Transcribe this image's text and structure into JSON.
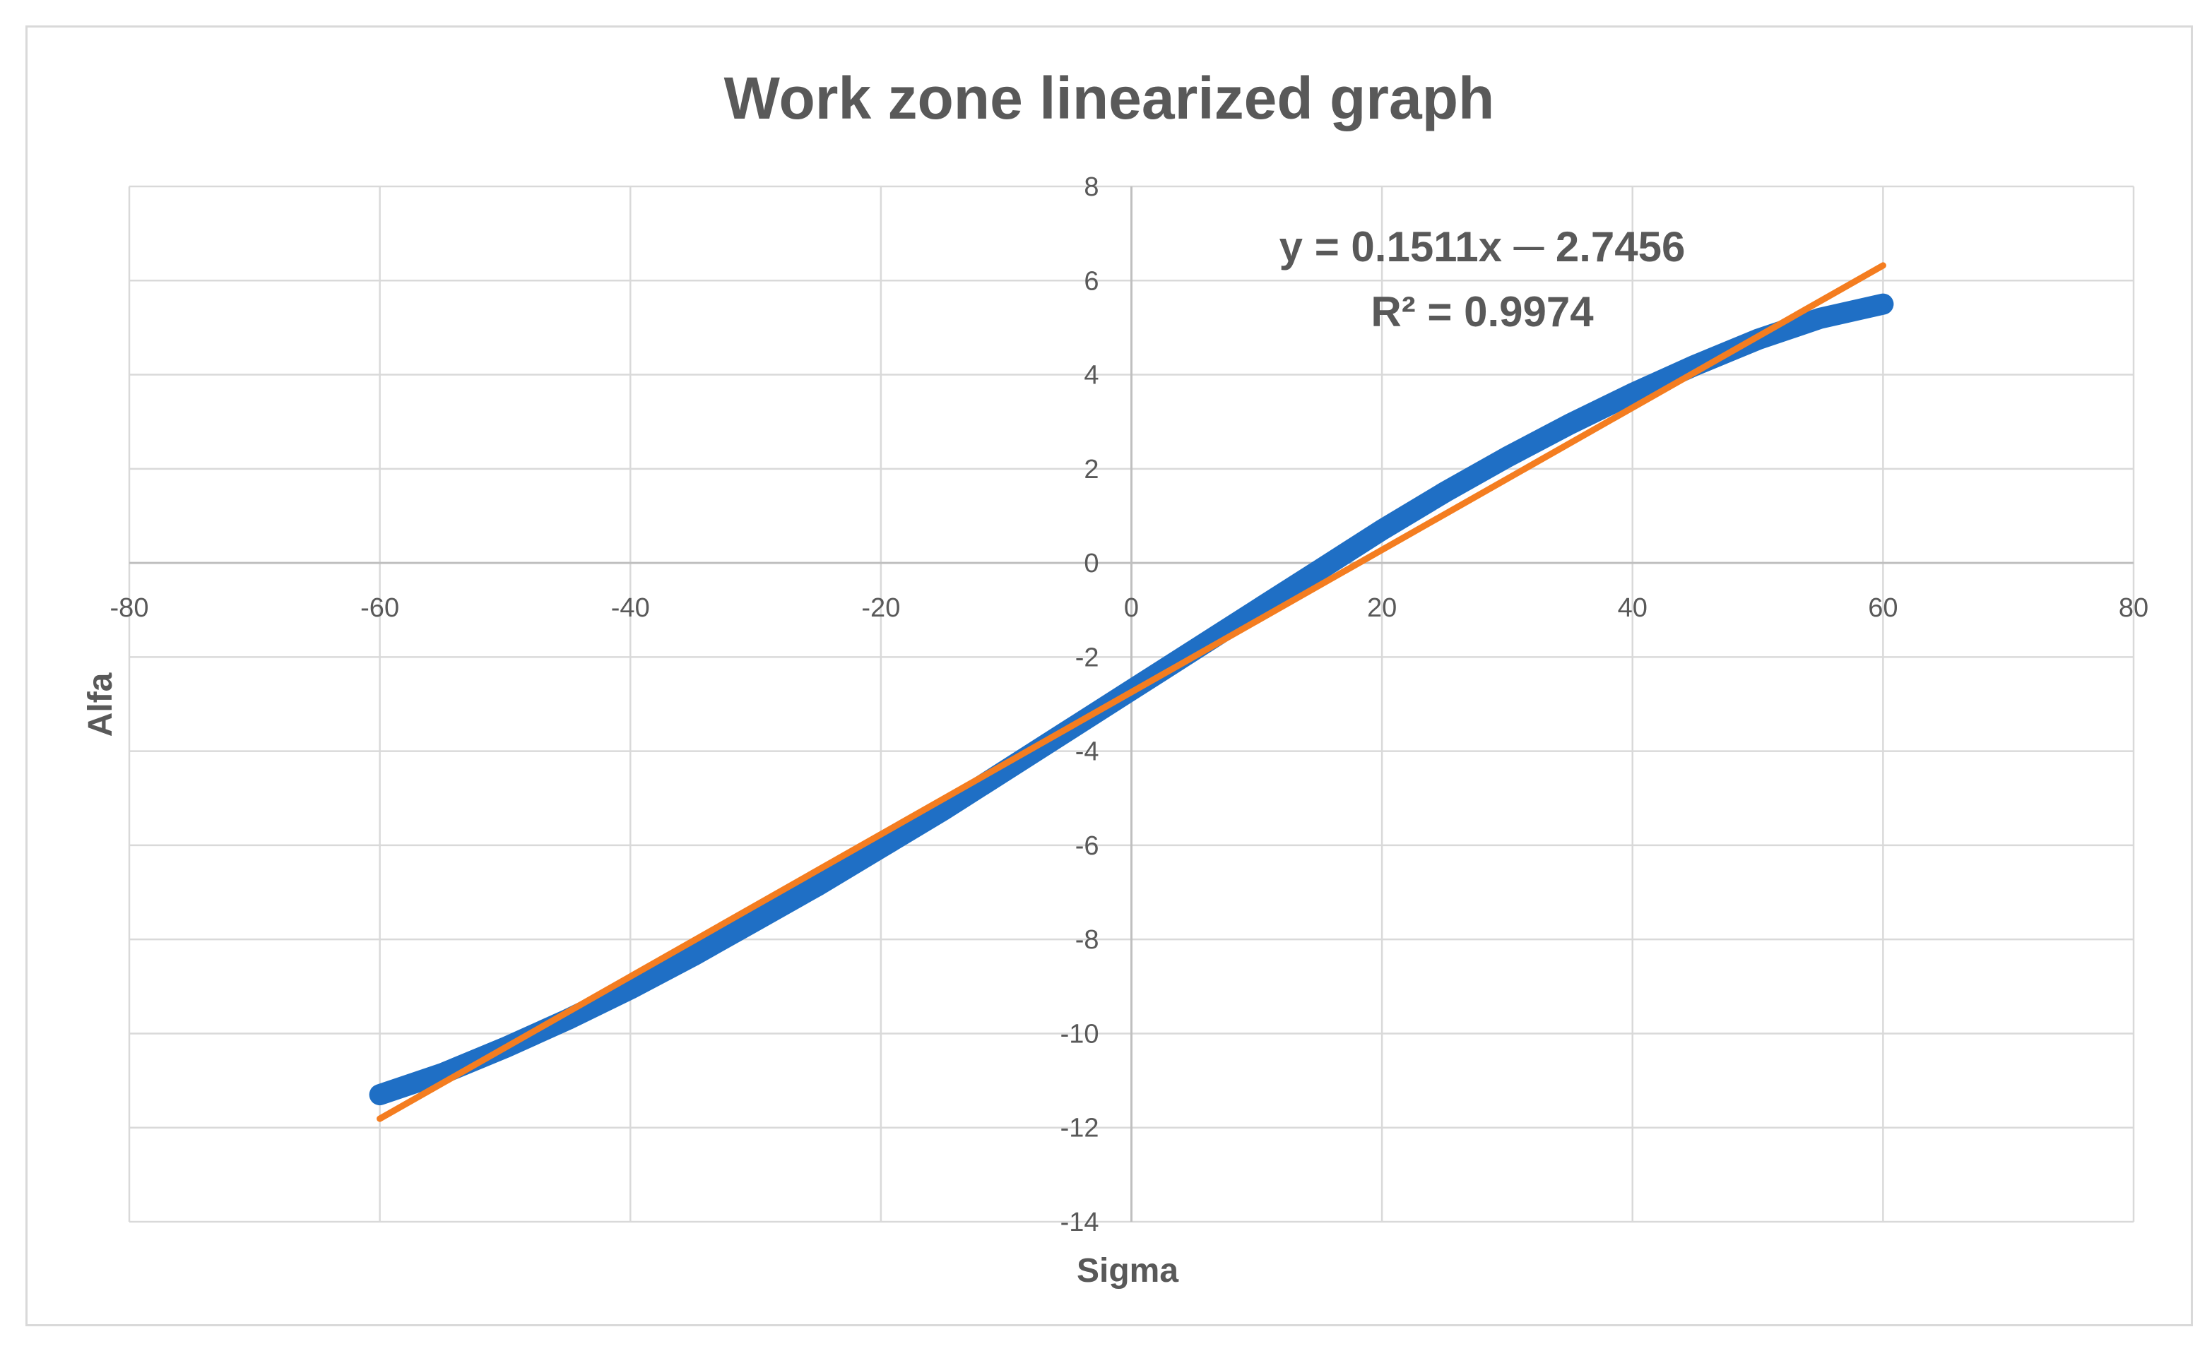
{
  "chart_data": {
    "type": "scatter",
    "title": "Work zone linearized graph",
    "xlabel": "Sigma",
    "ylabel": "Alfa",
    "xlim": [
      -80,
      80
    ],
    "ylim": [
      -14,
      8
    ],
    "xticks": [
      -80,
      -60,
      -40,
      -20,
      0,
      20,
      40,
      60,
      80
    ],
    "yticks": [
      -14,
      -12,
      -10,
      -8,
      -6,
      -4,
      -2,
      0,
      2,
      4,
      6,
      8
    ],
    "xtick_labels": [
      "-80",
      "-60",
      "-40",
      "-20",
      "0",
      "20",
      "40",
      "60",
      "80"
    ],
    "ytick_labels": [
      "-14",
      "-12",
      "-10",
      "-8",
      "-6",
      "-4",
      "-2",
      "0",
      "2",
      "4",
      "6",
      "8"
    ],
    "grid": true,
    "legend": "none",
    "series": [
      {
        "color": "#1f6fc5",
        "x": [
          -60,
          -55,
          -50,
          -45,
          -40,
          -35,
          -30,
          -25,
          -20,
          -15,
          -10,
          -5,
          0,
          5,
          10,
          15,
          20,
          25,
          30,
          35,
          40,
          45,
          50,
          55,
          60
        ],
        "y": [
          -11.3,
          -10.85,
          -10.3,
          -9.7,
          -9.05,
          -8.35,
          -7.6,
          -6.85,
          -6.05,
          -5.25,
          -4.4,
          -3.55,
          -2.7,
          -1.85,
          -1.0,
          -0.15,
          0.7,
          1.5,
          2.25,
          2.95,
          3.6,
          4.2,
          4.75,
          5.2,
          5.5
        ]
      },
      {
        "color": "#f47d20",
        "x": [
          -60,
          60
        ],
        "y": [
          -11.81,
          6.32
        ]
      }
    ],
    "annotations": {
      "equation": "y = 0.1511x ─ 2.7456",
      "r_squared": "R² = 0.9974"
    }
  }
}
